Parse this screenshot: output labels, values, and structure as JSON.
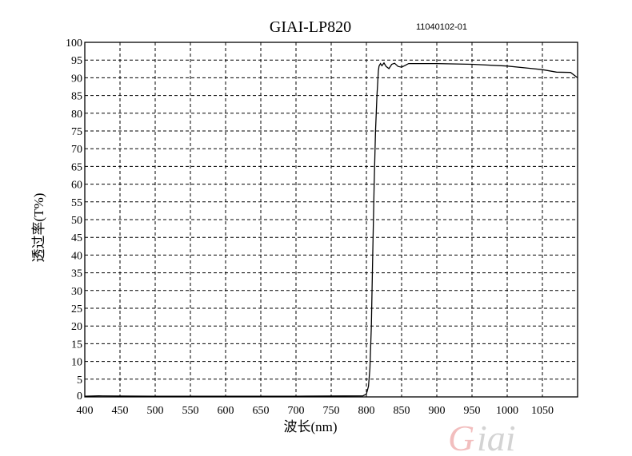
{
  "chart_data": {
    "type": "line",
    "title": "GIAI-LP820",
    "subtitle": "11040102-01",
    "xlabel": "波长(nm)",
    "ylabel": "透过率(T%)",
    "xlim": [
      400,
      1100
    ],
    "ylim": [
      0,
      100
    ],
    "xticks": [
      400,
      450,
      500,
      550,
      600,
      650,
      700,
      750,
      800,
      850,
      900,
      950,
      1000,
      1050
    ],
    "yticks": [
      0,
      5,
      10,
      15,
      20,
      25,
      30,
      35,
      40,
      45,
      50,
      55,
      60,
      65,
      70,
      75,
      80,
      85,
      90,
      95,
      100
    ],
    "grid": true,
    "grid_style": "dashed",
    "series": [
      {
        "x": [
          400,
          420,
          500,
          600,
          700,
          795,
          800,
          803,
          805,
          807,
          809,
          811,
          813,
          815,
          817,
          818,
          820,
          822,
          825,
          828,
          832,
          836,
          840,
          845,
          850,
          855,
          860,
          880,
          900,
          950,
          1000,
          1030,
          1050,
          1070,
          1090,
          1100
        ],
        "y": [
          0.2,
          0.3,
          0.2,
          0.2,
          0.2,
          0.3,
          0.8,
          3,
          8,
          20,
          40,
          60,
          75,
          85,
          92,
          93.3,
          94,
          93.4,
          94.2,
          93.2,
          92.6,
          93.8,
          94.1,
          93.2,
          93.0,
          93.5,
          94,
          94,
          94,
          93.8,
          93.3,
          92.7,
          92.3,
          91.6,
          91.5,
          90
        ],
        "color": "#000000"
      }
    ],
    "logo": "Giai",
    "logo_colors": [
      "#e88a8a",
      "#b0b0b0"
    ]
  }
}
